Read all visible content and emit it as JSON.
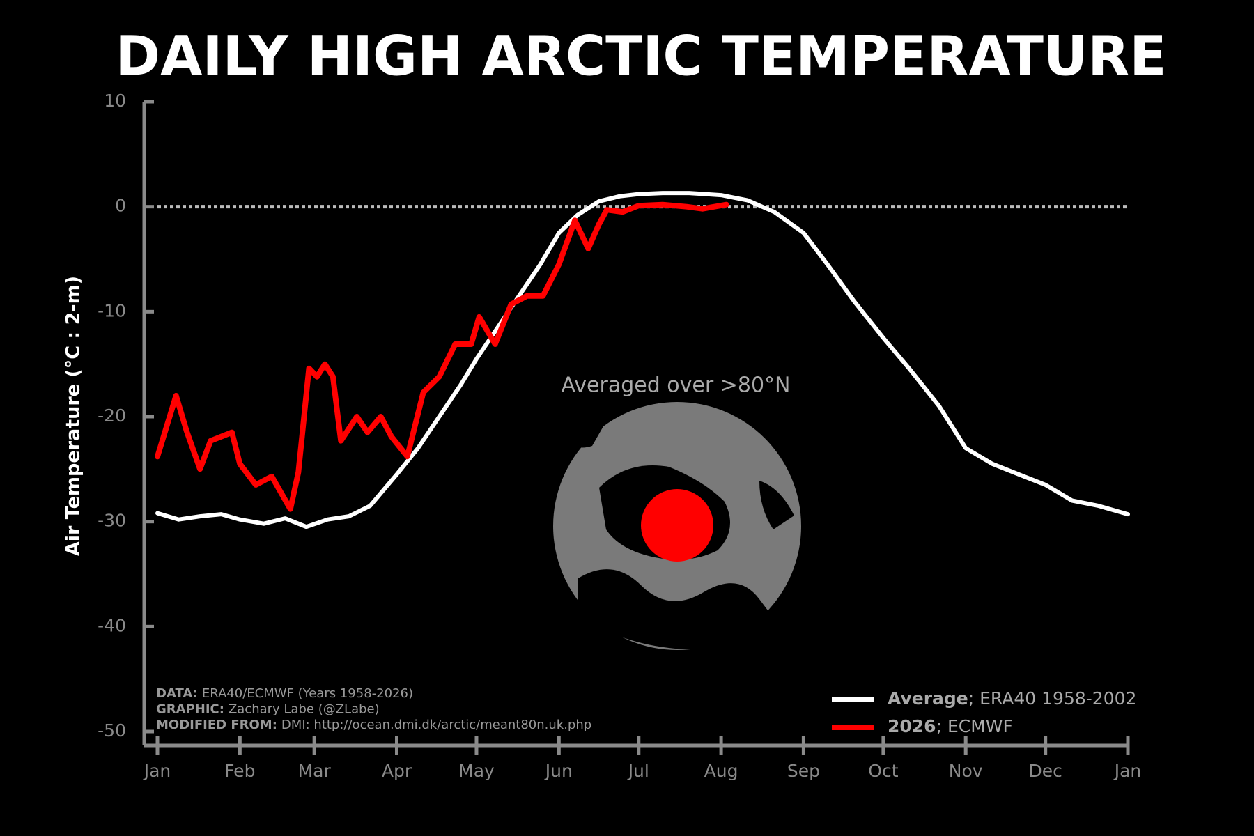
{
  "chart_data": {
    "type": "line",
    "title": "DAILY HIGH ARCTIC TEMPERATURE",
    "y_label": "Air Temperature (°C : 2-m)",
    "xlim": [
      0,
      365
    ],
    "xticks": [
      {
        "value": 0,
        "label": "Jan"
      },
      {
        "value": 31,
        "label": "Feb"
      },
      {
        "value": 59,
        "label": "Mar"
      },
      {
        "value": 90,
        "label": "Apr"
      },
      {
        "value": 120,
        "label": "May"
      },
      {
        "value": 151,
        "label": "Jun"
      },
      {
        "value": 181,
        "label": "Jul"
      },
      {
        "value": 212,
        "label": "Aug"
      },
      {
        "value": 243,
        "label": "Sep"
      },
      {
        "value": 273,
        "label": "Oct"
      },
      {
        "value": 304,
        "label": "Nov"
      },
      {
        "value": 334,
        "label": "Dec"
      },
      {
        "value": 365,
        "label": "Jan"
      }
    ],
    "ylim": [
      -50,
      10
    ],
    "yticks": [
      -50,
      -40,
      -30,
      -20,
      -10,
      0,
      10
    ],
    "reference_line": 0,
    "annotation": "Averaged over >80°N",
    "credits": [
      {
        "label": "DATA:",
        "text": "ERA40/ECMWF (Years 1958-2026)"
      },
      {
        "label": "GRAPHIC:",
        "text": "Zachary Labe (@ZLabe)"
      },
      {
        "label": "MODIFIED FROM:",
        "text": "DMI: http://ocean.dmi.dk/arctic/meant80n.uk.php"
      }
    ],
    "series": [
      {
        "name": "Average",
        "note": "; ERA40 1958-2002",
        "color": "#ffffff",
        "x": [
          0,
          8,
          16,
          24,
          31,
          40,
          48,
          56,
          64,
          72,
          80,
          90,
          98,
          106,
          114,
          120,
          128,
          136,
          144,
          151,
          158,
          166,
          174,
          181,
          190,
          200,
          212,
          222,
          232,
          243,
          252,
          262,
          273,
          283,
          294,
          304,
          314,
          324,
          334,
          344,
          354,
          365
        ],
        "values": [
          -29.2,
          -29.8,
          -29.5,
          -29.3,
          -29.8,
          -30.2,
          -29.7,
          -30.5,
          -29.8,
          -29.5,
          -28.5,
          -25.5,
          -23,
          -20,
          -17,
          -14.5,
          -11.5,
          -8.5,
          -5.5,
          -2.5,
          -0.8,
          0.5,
          1,
          1.2,
          1.3,
          1.3,
          1.1,
          0.6,
          -0.5,
          -2.5,
          -5.5,
          -9,
          -12.5,
          -15.5,
          -19,
          -23,
          -24.5,
          -25.5,
          -26.5,
          -28,
          -28.5,
          -29.3
        ]
      },
      {
        "name": "2026",
        "note": "; ECMWF",
        "color": "#ff0000",
        "x": [
          0,
          7,
          11,
          16,
          20,
          28,
          31,
          37,
          43,
          50,
          53,
          57,
          60,
          63,
          66,
          69,
          75,
          79,
          84,
          88,
          94,
          100,
          106,
          112,
          118,
          121,
          127,
          133,
          139,
          145,
          151,
          157,
          162,
          166,
          169,
          175,
          181,
          190,
          199,
          205,
          214
        ],
        "values": [
          -23.8,
          -18,
          -21.4,
          -25,
          -22.3,
          -21.5,
          -24.5,
          -26.5,
          -25.7,
          -28.8,
          -25.3,
          -15.4,
          -16.2,
          -15,
          -16.2,
          -22.3,
          -20,
          -21.5,
          -20,
          -21.9,
          -23.8,
          -17.7,
          -16.2,
          -13.1,
          -13.1,
          -10.5,
          -13.1,
          -9.3,
          -8.5,
          -8.5,
          -5.5,
          -1.3,
          -4,
          -1.7,
          -0.3,
          -0.5,
          0.1,
          0.2,
          0,
          -0.2,
          0.2
        ]
      }
    ]
  }
}
